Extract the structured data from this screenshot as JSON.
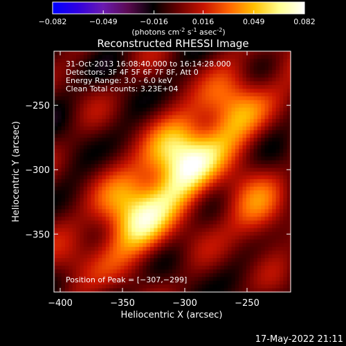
{
  "colorbar": {
    "ticks": [
      "-0.082",
      "-0.049",
      "-0.016",
      "0.016",
      "0.049",
      "0.082"
    ],
    "units_main": "(photons cm",
    "units_sup1": "-2",
    "units_mid": " s",
    "units_sup2": "-1",
    "units_end": " asec",
    "units_sup3": "-2",
    "units_close": ")",
    "range": [
      -0.082,
      0.082
    ],
    "colors": [
      "#0000ff",
      "#3000e0",
      "#6a1ab0",
      "#5a0a50",
      "#000000",
      "#6a0000",
      "#c81400",
      "#ff6400",
      "#ffc000",
      "#ffff90",
      "#ffffff"
    ]
  },
  "chart_data": {
    "type": "heatmap",
    "title": "Reconstructed RHESSI Image",
    "xlabel": "Heliocentric X (arcsec)",
    "ylabel": "Heliocentric Y (arcsec)",
    "xlim": [
      -405,
      -215
    ],
    "ylim": [
      -395,
      -208
    ],
    "x_ticks": [
      -400,
      -350,
      -300,
      -250
    ],
    "y_ticks": [
      -250,
      -300,
      -350
    ],
    "x_tick_labels": [
      "−400",
      "−350",
      "−300",
      "−250"
    ],
    "y_tick_labels": [
      "−250",
      "−300",
      "−350"
    ],
    "annotations": [
      "31-Oct-2013 16:08:40.000 to 16:14:28.000",
      "Detectors: 3F 4F 5F 6F 7F 8F, Att 0",
      "Energy Range: 3.0 - 6.0 keV",
      "Clean     Total counts: 3.23E+04"
    ],
    "peak_label": "Position of Peak = [−307,−299]",
    "peak_position": [
      -307,
      -299
    ]
  },
  "footer": {
    "timestamp": "17-May-2022 21:11"
  }
}
